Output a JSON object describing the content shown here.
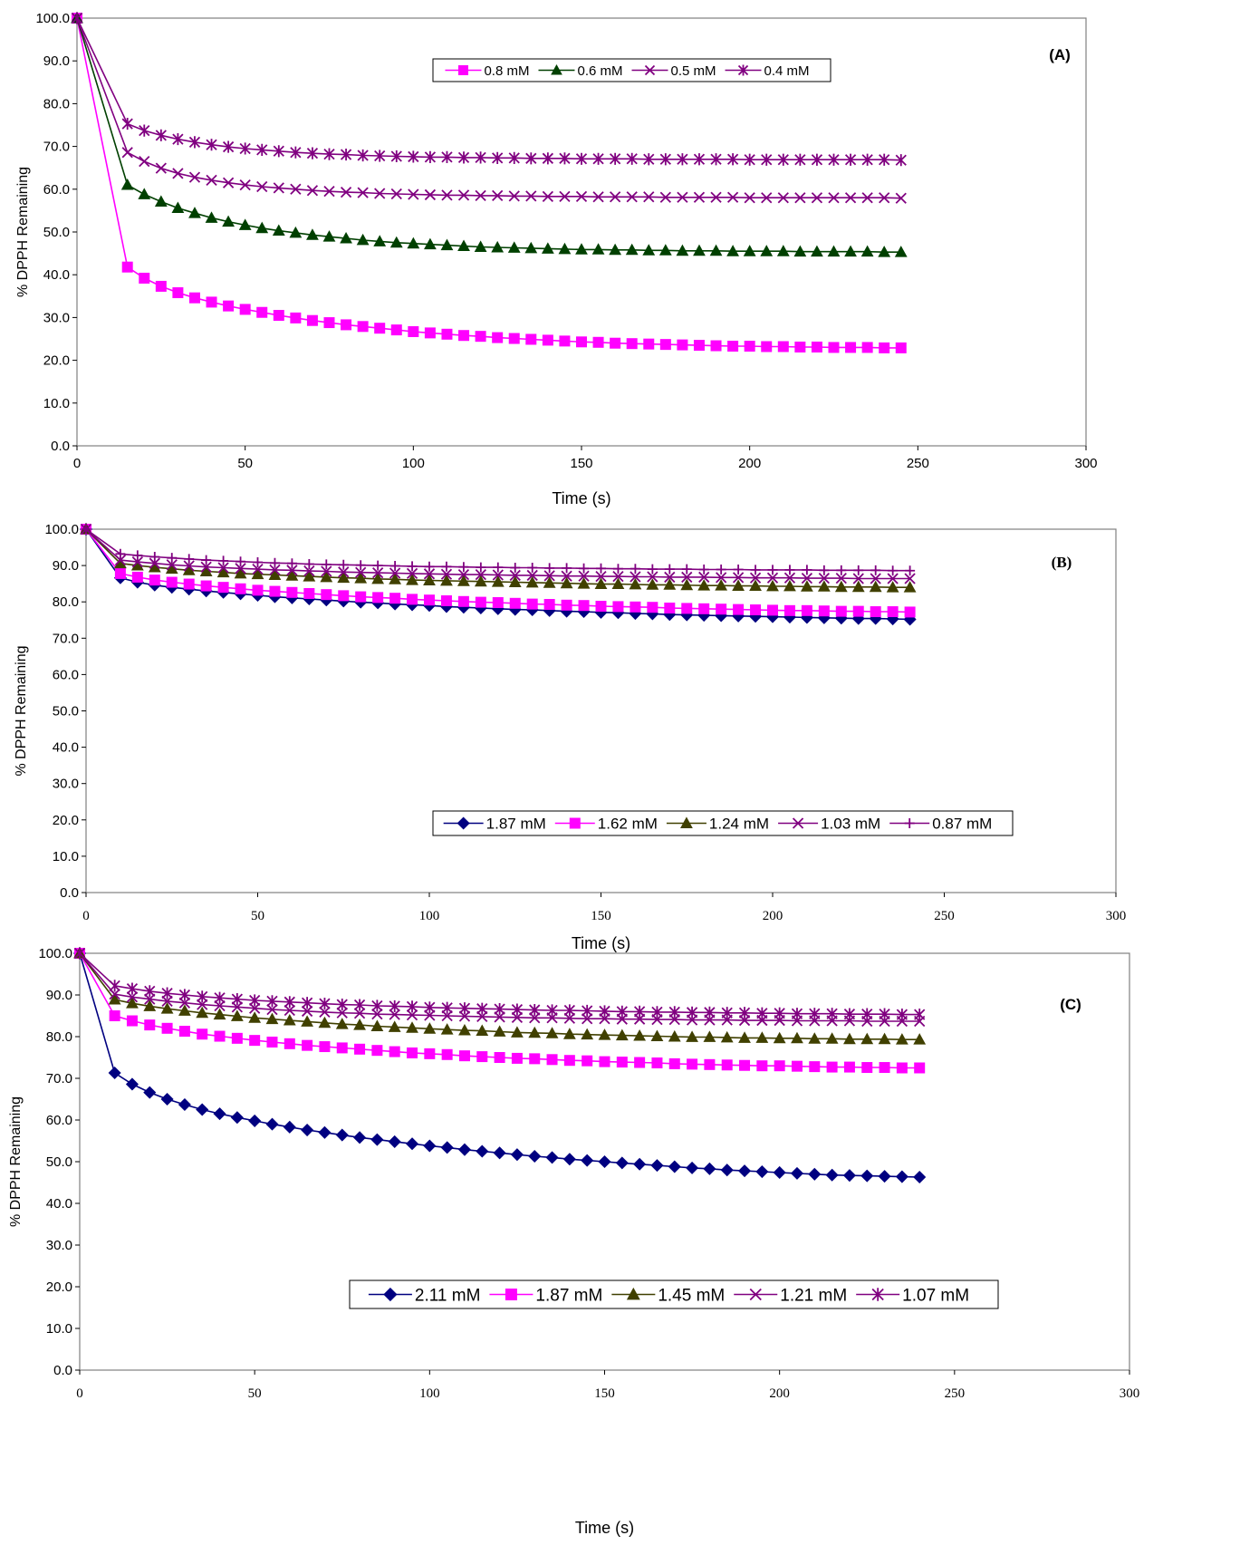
{
  "chart_data": [
    {
      "type": "line",
      "panel_label": "(A)",
      "xlabel": "Time (s)",
      "ylabel": "% DPPH Remaining",
      "xlim": [
        0,
        300
      ],
      "ylim": [
        0,
        100
      ],
      "x_ticks": [
        "0",
        "50",
        "100",
        "150",
        "200",
        "250",
        "300"
      ],
      "y_ticks": [
        "0.0",
        "10.0",
        "20.0",
        "30.0",
        "40.0",
        "50.0",
        "60.0",
        "70.0",
        "80.0",
        "90.0",
        "100.0"
      ],
      "grid": false,
      "legend_position": "top-center",
      "x": [
        0,
        15,
        20,
        25,
        30,
        35,
        40,
        45,
        50,
        55,
        60,
        65,
        70,
        75,
        80,
        85,
        90,
        95,
        100,
        105,
        110,
        115,
        120,
        125,
        130,
        135,
        140,
        145,
        150,
        155,
        160,
        165,
        170,
        175,
        180,
        185,
        190,
        195,
        200,
        205,
        210,
        215,
        220,
        225,
        230,
        235,
        240,
        245
      ],
      "series": [
        {
          "name": "0.8 mM",
          "color": "#ff00ff",
          "marker": "square",
          "values": [
            100,
            41.8,
            39.2,
            37.3,
            35.8,
            34.6,
            33.6,
            32.7,
            31.9,
            31.2,
            30.5,
            29.9,
            29.3,
            28.8,
            28.3,
            27.9,
            27.5,
            27.1,
            26.7,
            26.4,
            26.1,
            25.8,
            25.6,
            25.3,
            25.1,
            24.9,
            24.7,
            24.5,
            24.3,
            24.2,
            24.0,
            23.9,
            23.8,
            23.7,
            23.6,
            23.5,
            23.4,
            23.3,
            23.3,
            23.2,
            23.2,
            23.1,
            23.1,
            23.0,
            23.0,
            23.0,
            22.9,
            22.9
          ]
        },
        {
          "name": "0.6 mM",
          "color": "#004000",
          "marker": "triangle",
          "values": [
            100,
            61.0,
            58.8,
            57.1,
            55.6,
            54.4,
            53.3,
            52.4,
            51.6,
            50.9,
            50.3,
            49.8,
            49.3,
            48.9,
            48.5,
            48.1,
            47.8,
            47.5,
            47.3,
            47.1,
            46.9,
            46.7,
            46.5,
            46.4,
            46.3,
            46.2,
            46.1,
            46.0,
            45.9,
            45.9,
            45.8,
            45.8,
            45.7,
            45.7,
            45.6,
            45.6,
            45.6,
            45.5,
            45.5,
            45.5,
            45.5,
            45.4,
            45.4,
            45.4,
            45.4,
            45.4,
            45.3,
            45.3
          ]
        },
        {
          "name": "0.5 mM",
          "color": "#800080",
          "marker": "x",
          "values": [
            100,
            68.6,
            66.5,
            64.9,
            63.7,
            62.8,
            62.1,
            61.5,
            61.0,
            60.6,
            60.3,
            60.0,
            59.7,
            59.5,
            59.3,
            59.2,
            59.0,
            58.9,
            58.8,
            58.7,
            58.6,
            58.6,
            58.5,
            58.5,
            58.4,
            58.4,
            58.3,
            58.3,
            58.3,
            58.2,
            58.2,
            58.2,
            58.2,
            58.1,
            58.1,
            58.1,
            58.1,
            58.1,
            58.0,
            58.0,
            58.0,
            58.0,
            58.0,
            58.0,
            58.0,
            58.0,
            58.0,
            57.9
          ]
        },
        {
          "name": "0.4 mM",
          "color": "#800080",
          "marker": "star",
          "values": [
            100,
            75.3,
            73.7,
            72.6,
            71.7,
            71.0,
            70.4,
            69.9,
            69.5,
            69.2,
            68.9,
            68.6,
            68.4,
            68.2,
            68.1,
            67.9,
            67.8,
            67.7,
            67.6,
            67.5,
            67.5,
            67.4,
            67.4,
            67.3,
            67.3,
            67.2,
            67.2,
            67.2,
            67.1,
            67.1,
            67.1,
            67.1,
            67.0,
            67.0,
            67.0,
            67.0,
            67.0,
            67.0,
            66.9,
            66.9,
            66.9,
            66.9,
            66.9,
            66.9,
            66.9,
            66.9,
            66.9,
            66.8
          ]
        }
      ]
    },
    {
      "type": "line",
      "panel_label": "(B)",
      "xlabel": "Time (s)",
      "ylabel": "% DPPH Remaining",
      "xlim": [
        0,
        300
      ],
      "ylim": [
        0,
        100
      ],
      "x_ticks": [
        "0",
        "50",
        "100",
        "150",
        "200",
        "250",
        "300"
      ],
      "y_ticks": [
        "0.0",
        "10.0",
        "20.0",
        "30.0",
        "40.0",
        "50.0",
        "60.0",
        "70.0",
        "80.0",
        "90.0",
        "100.0"
      ],
      "grid": false,
      "legend_position": "bottom-right",
      "x": [
        0,
        10,
        15,
        20,
        25,
        30,
        35,
        40,
        45,
        50,
        55,
        60,
        65,
        70,
        75,
        80,
        85,
        90,
        95,
        100,
        105,
        110,
        115,
        120,
        125,
        130,
        135,
        140,
        145,
        150,
        155,
        160,
        165,
        170,
        175,
        180,
        185,
        190,
        195,
        200,
        205,
        210,
        215,
        220,
        225,
        230,
        235,
        240
      ],
      "series": [
        {
          "name": "1.87 mM",
          "color": "#000080",
          "marker": "diamond",
          "values": [
            100,
            86.6,
            85.4,
            84.6,
            84.0,
            83.5,
            83.0,
            82.6,
            82.2,
            81.8,
            81.4,
            81.1,
            80.8,
            80.5,
            80.2,
            79.9,
            79.7,
            79.4,
            79.2,
            79.0,
            78.7,
            78.5,
            78.3,
            78.1,
            77.9,
            77.8,
            77.6,
            77.4,
            77.3,
            77.1,
            77.0,
            76.8,
            76.7,
            76.5,
            76.4,
            76.3,
            76.2,
            76.1,
            76.0,
            75.9,
            75.8,
            75.7,
            75.6,
            75.5,
            75.4,
            75.4,
            75.3,
            75.2
          ]
        },
        {
          "name": "1.62 mM",
          "color": "#ff00ff",
          "marker": "square",
          "values": [
            100,
            87.8,
            86.8,
            86.0,
            85.4,
            84.9,
            84.4,
            84.0,
            83.6,
            83.2,
            82.9,
            82.6,
            82.3,
            82.0,
            81.7,
            81.4,
            81.2,
            81.0,
            80.7,
            80.5,
            80.3,
            80.1,
            79.9,
            79.8,
            79.6,
            79.4,
            79.3,
            79.1,
            79.0,
            78.8,
            78.7,
            78.6,
            78.5,
            78.3,
            78.2,
            78.1,
            78.0,
            77.9,
            77.8,
            77.7,
            77.6,
            77.6,
            77.5,
            77.4,
            77.4,
            77.3,
            77.3,
            77.2
          ]
        },
        {
          "name": "1.24 mM",
          "color": "#404000",
          "marker": "triangle",
          "values": [
            100,
            90.6,
            90.0,
            89.5,
            89.1,
            88.7,
            88.4,
            88.1,
            87.8,
            87.6,
            87.4,
            87.2,
            87.0,
            86.8,
            86.6,
            86.5,
            86.3,
            86.2,
            86.0,
            85.9,
            85.8,
            85.7,
            85.6,
            85.5,
            85.4,
            85.3,
            85.2,
            85.1,
            85.0,
            84.9,
            84.9,
            84.8,
            84.7,
            84.7,
            84.6,
            84.5,
            84.5,
            84.4,
            84.4,
            84.3,
            84.3,
            84.2,
            84.2,
            84.1,
            84.1,
            84.1,
            84.0,
            84.0
          ]
        },
        {
          "name": "1.03 mM",
          "color": "#800080",
          "marker": "x",
          "values": [
            100,
            91.5,
            91.0,
            90.6,
            90.2,
            89.9,
            89.6,
            89.4,
            89.2,
            89.0,
            88.8,
            88.7,
            88.5,
            88.4,
            88.2,
            88.1,
            88.0,
            87.9,
            87.8,
            87.7,
            87.6,
            87.5,
            87.5,
            87.4,
            87.3,
            87.3,
            87.2,
            87.1,
            87.1,
            87.0,
            87.0,
            86.9,
            86.9,
            86.8,
            86.8,
            86.8,
            86.7,
            86.7,
            86.6,
            86.6,
            86.6,
            86.5,
            86.5,
            86.5,
            86.4,
            86.4,
            86.4,
            86.4
          ]
        },
        {
          "name": "0.87 mM",
          "color": "#800080",
          "marker": "plus",
          "values": [
            100,
            93.2,
            92.8,
            92.4,
            92.1,
            91.8,
            91.5,
            91.3,
            91.1,
            90.9,
            90.7,
            90.6,
            90.4,
            90.3,
            90.2,
            90.1,
            90.0,
            89.9,
            89.8,
            89.7,
            89.7,
            89.6,
            89.5,
            89.5,
            89.4,
            89.4,
            89.3,
            89.3,
            89.2,
            89.2,
            89.1,
            89.1,
            89.0,
            89.0,
            89.0,
            88.9,
            88.9,
            88.9,
            88.8,
            88.8,
            88.8,
            88.8,
            88.7,
            88.7,
            88.7,
            88.7,
            88.6,
            88.6
          ]
        }
      ]
    },
    {
      "type": "line",
      "panel_label": "(C)",
      "xlabel": "Time (s)",
      "ylabel": "% DPPH Remaining",
      "xlim": [
        0,
        300
      ],
      "ylim": [
        0,
        100
      ],
      "x_ticks": [
        "0",
        "50",
        "100",
        "150",
        "200",
        "250",
        "300"
      ],
      "y_ticks": [
        "0.0",
        "10.0",
        "20.0",
        "30.0",
        "40.0",
        "50.0",
        "60.0",
        "70.0",
        "80.0",
        "90.0",
        "100.0"
      ],
      "grid": false,
      "legend_position": "bottom-right",
      "x": [
        0,
        10,
        15,
        20,
        25,
        30,
        35,
        40,
        45,
        50,
        55,
        60,
        65,
        70,
        75,
        80,
        85,
        90,
        95,
        100,
        105,
        110,
        115,
        120,
        125,
        130,
        135,
        140,
        145,
        150,
        155,
        160,
        165,
        170,
        175,
        180,
        185,
        190,
        195,
        200,
        205,
        210,
        215,
        220,
        225,
        230,
        235,
        240
      ],
      "series": [
        {
          "name": "2.11 mM",
          "color": "#000080",
          "marker": "diamond",
          "values": [
            100,
            71.3,
            68.6,
            66.6,
            65.0,
            63.7,
            62.5,
            61.5,
            60.6,
            59.8,
            59.0,
            58.3,
            57.6,
            57.0,
            56.4,
            55.8,
            55.3,
            54.8,
            54.3,
            53.8,
            53.4,
            52.9,
            52.5,
            52.1,
            51.7,
            51.3,
            51.0,
            50.6,
            50.3,
            50.0,
            49.7,
            49.4,
            49.1,
            48.8,
            48.5,
            48.3,
            48.0,
            47.8,
            47.6,
            47.4,
            47.2,
            47.0,
            46.8,
            46.7,
            46.6,
            46.5,
            46.4,
            46.3
          ]
        },
        {
          "name": "1.87 mM",
          "color": "#ff00ff",
          "marker": "square",
          "values": [
            100,
            85.0,
            83.8,
            82.8,
            82.0,
            81.3,
            80.6,
            80.1,
            79.6,
            79.1,
            78.7,
            78.3,
            77.9,
            77.6,
            77.3,
            77.0,
            76.7,
            76.4,
            76.1,
            75.9,
            75.7,
            75.4,
            75.2,
            75.0,
            74.8,
            74.7,
            74.5,
            74.3,
            74.2,
            74.0,
            73.9,
            73.8,
            73.7,
            73.5,
            73.4,
            73.3,
            73.2,
            73.1,
            73.0,
            73.0,
            72.9,
            72.8,
            72.7,
            72.7,
            72.6,
            72.6,
            72.5,
            72.5
          ]
        },
        {
          "name": "1.45 mM",
          "color": "#404000",
          "marker": "triangle",
          "values": [
            100,
            88.9,
            88.0,
            87.3,
            86.7,
            86.2,
            85.7,
            85.3,
            84.9,
            84.5,
            84.2,
            83.9,
            83.6,
            83.3,
            83.0,
            82.8,
            82.5,
            82.3,
            82.1,
            81.9,
            81.7,
            81.5,
            81.4,
            81.2,
            81.0,
            80.9,
            80.8,
            80.6,
            80.5,
            80.4,
            80.3,
            80.2,
            80.1,
            80.0,
            79.9,
            79.9,
            79.8,
            79.7,
            79.7,
            79.6,
            79.6,
            79.5,
            79.5,
            79.4,
            79.4,
            79.4,
            79.3,
            79.3
          ]
        },
        {
          "name": "1.21 mM",
          "color": "#800080",
          "marker": "x",
          "values": [
            100,
            90.2,
            89.5,
            89.0,
            88.5,
            88.1,
            87.7,
            87.4,
            87.1,
            86.8,
            86.5,
            86.3,
            86.1,
            85.9,
            85.7,
            85.6,
            85.4,
            85.3,
            85.2,
            85.1,
            85.0,
            84.9,
            84.8,
            84.7,
            84.6,
            84.5,
            84.5,
            84.4,
            84.3,
            84.3,
            84.2,
            84.2,
            84.1,
            84.1,
            84.0,
            84.0,
            84.0,
            83.9,
            83.9,
            83.9,
            83.8,
            83.8,
            83.8,
            83.8,
            83.7,
            83.7,
            83.7,
            83.7
          ]
        },
        {
          "name": "1.07 mM",
          "color": "#800080",
          "marker": "star",
          "values": [
            100,
            92.2,
            91.5,
            90.9,
            90.4,
            90.0,
            89.6,
            89.3,
            89.0,
            88.7,
            88.5,
            88.3,
            88.1,
            87.9,
            87.7,
            87.6,
            87.4,
            87.3,
            87.2,
            87.0,
            86.9,
            86.8,
            86.7,
            86.6,
            86.5,
            86.4,
            86.3,
            86.3,
            86.2,
            86.1,
            86.0,
            86.0,
            85.9,
            85.9,
            85.8,
            85.8,
            85.7,
            85.7,
            85.6,
            85.6,
            85.5,
            85.5,
            85.5,
            85.4,
            85.4,
            85.4,
            85.3,
            85.3
          ]
        }
      ]
    }
  ]
}
